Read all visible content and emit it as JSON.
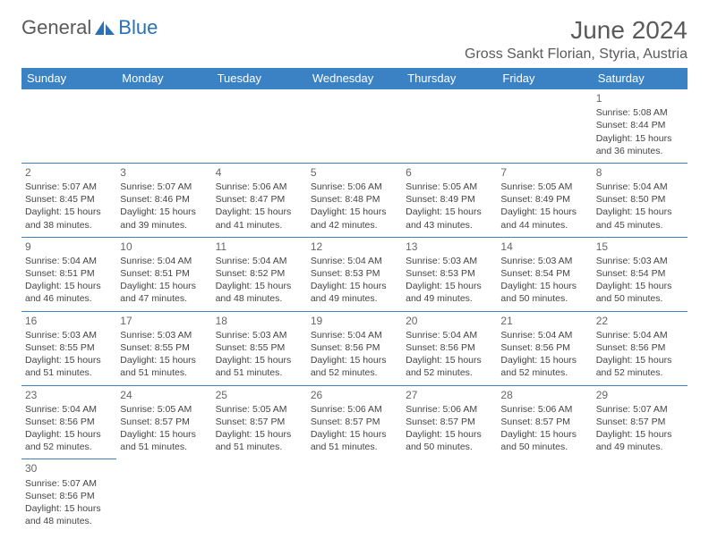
{
  "logo": {
    "text1": "General",
    "text2": "Blue"
  },
  "title": "June 2024",
  "location": "Gross Sankt Florian, Styria, Austria",
  "colors": {
    "header_bg": "#3b82c4",
    "header_fg": "#ffffff",
    "border": "#3b82c4",
    "text": "#444444",
    "title_color": "#5a5a5a",
    "logo_blue": "#2a72b5"
  },
  "day_headers": [
    "Sunday",
    "Monday",
    "Tuesday",
    "Wednesday",
    "Thursday",
    "Friday",
    "Saturday"
  ],
  "weeks": [
    [
      null,
      null,
      null,
      null,
      null,
      null,
      {
        "n": "1",
        "sr": "5:08 AM",
        "ss": "8:44 PM",
        "dl": "15 hours and 36 minutes."
      }
    ],
    [
      {
        "n": "2",
        "sr": "5:07 AM",
        "ss": "8:45 PM",
        "dl": "15 hours and 38 minutes."
      },
      {
        "n": "3",
        "sr": "5:07 AM",
        "ss": "8:46 PM",
        "dl": "15 hours and 39 minutes."
      },
      {
        "n": "4",
        "sr": "5:06 AM",
        "ss": "8:47 PM",
        "dl": "15 hours and 41 minutes."
      },
      {
        "n": "5",
        "sr": "5:06 AM",
        "ss": "8:48 PM",
        "dl": "15 hours and 42 minutes."
      },
      {
        "n": "6",
        "sr": "5:05 AM",
        "ss": "8:49 PM",
        "dl": "15 hours and 43 minutes."
      },
      {
        "n": "7",
        "sr": "5:05 AM",
        "ss": "8:49 PM",
        "dl": "15 hours and 44 minutes."
      },
      {
        "n": "8",
        "sr": "5:04 AM",
        "ss": "8:50 PM",
        "dl": "15 hours and 45 minutes."
      }
    ],
    [
      {
        "n": "9",
        "sr": "5:04 AM",
        "ss": "8:51 PM",
        "dl": "15 hours and 46 minutes."
      },
      {
        "n": "10",
        "sr": "5:04 AM",
        "ss": "8:51 PM",
        "dl": "15 hours and 47 minutes."
      },
      {
        "n": "11",
        "sr": "5:04 AM",
        "ss": "8:52 PM",
        "dl": "15 hours and 48 minutes."
      },
      {
        "n": "12",
        "sr": "5:04 AM",
        "ss": "8:53 PM",
        "dl": "15 hours and 49 minutes."
      },
      {
        "n": "13",
        "sr": "5:03 AM",
        "ss": "8:53 PM",
        "dl": "15 hours and 49 minutes."
      },
      {
        "n": "14",
        "sr": "5:03 AM",
        "ss": "8:54 PM",
        "dl": "15 hours and 50 minutes."
      },
      {
        "n": "15",
        "sr": "5:03 AM",
        "ss": "8:54 PM",
        "dl": "15 hours and 50 minutes."
      }
    ],
    [
      {
        "n": "16",
        "sr": "5:03 AM",
        "ss": "8:55 PM",
        "dl": "15 hours and 51 minutes."
      },
      {
        "n": "17",
        "sr": "5:03 AM",
        "ss": "8:55 PM",
        "dl": "15 hours and 51 minutes."
      },
      {
        "n": "18",
        "sr": "5:03 AM",
        "ss": "8:55 PM",
        "dl": "15 hours and 51 minutes."
      },
      {
        "n": "19",
        "sr": "5:04 AM",
        "ss": "8:56 PM",
        "dl": "15 hours and 52 minutes."
      },
      {
        "n": "20",
        "sr": "5:04 AM",
        "ss": "8:56 PM",
        "dl": "15 hours and 52 minutes."
      },
      {
        "n": "21",
        "sr": "5:04 AM",
        "ss": "8:56 PM",
        "dl": "15 hours and 52 minutes."
      },
      {
        "n": "22",
        "sr": "5:04 AM",
        "ss": "8:56 PM",
        "dl": "15 hours and 52 minutes."
      }
    ],
    [
      {
        "n": "23",
        "sr": "5:04 AM",
        "ss": "8:56 PM",
        "dl": "15 hours and 52 minutes."
      },
      {
        "n": "24",
        "sr": "5:05 AM",
        "ss": "8:57 PM",
        "dl": "15 hours and 51 minutes."
      },
      {
        "n": "25",
        "sr": "5:05 AM",
        "ss": "8:57 PM",
        "dl": "15 hours and 51 minutes."
      },
      {
        "n": "26",
        "sr": "5:06 AM",
        "ss": "8:57 PM",
        "dl": "15 hours and 51 minutes."
      },
      {
        "n": "27",
        "sr": "5:06 AM",
        "ss": "8:57 PM",
        "dl": "15 hours and 50 minutes."
      },
      {
        "n": "28",
        "sr": "5:06 AM",
        "ss": "8:57 PM",
        "dl": "15 hours and 50 minutes."
      },
      {
        "n": "29",
        "sr": "5:07 AM",
        "ss": "8:57 PM",
        "dl": "15 hours and 49 minutes."
      }
    ],
    [
      {
        "n": "30",
        "sr": "5:07 AM",
        "ss": "8:56 PM",
        "dl": "15 hours and 48 minutes."
      },
      null,
      null,
      null,
      null,
      null,
      null
    ]
  ],
  "labels": {
    "sunrise": "Sunrise:",
    "sunset": "Sunset:",
    "daylight": "Daylight:"
  }
}
